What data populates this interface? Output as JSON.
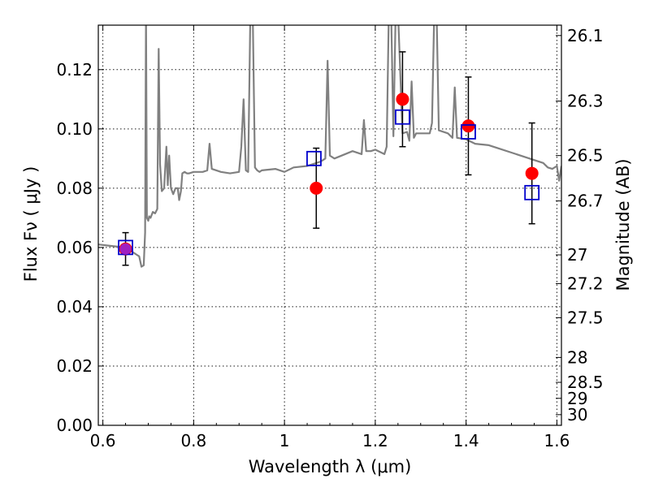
{
  "chart_data": {
    "type": "scatter",
    "xlabel": "Wavelength  λ (μm)",
    "ylabel": "Flux  Fν ( μJy )",
    "ylabel_right": "Magnitude (AB)",
    "xlim": [
      0.59,
      1.61
    ],
    "ylim": [
      0.0,
      0.135
    ],
    "grid": true,
    "x_ticks": [
      0.6,
      0.8,
      1.0,
      1.2,
      1.4,
      1.6
    ],
    "x_tick_labels": [
      "0.6",
      "0.8",
      "1",
      "1.2",
      "1.4",
      "1.6"
    ],
    "y_ticks": [
      0.0,
      0.02,
      0.04,
      0.06,
      0.08,
      0.1,
      0.12
    ],
    "y_tick_labels": [
      "0.00",
      "0.02",
      "0.04",
      "0.06",
      "0.08",
      "0.10",
      "0.12"
    ],
    "right_axis_ticks": [
      {
        "label": "26.1",
        "flux": 0.1315
      },
      {
        "label": "26.3",
        "flux": 0.1094
      },
      {
        "label": "26.5",
        "flux": 0.091
      },
      {
        "label": "26.7",
        "flux": 0.0757
      },
      {
        "label": "27",
        "flux": 0.0575
      },
      {
        "label": "27.2",
        "flux": 0.0478
      },
      {
        "label": "27.5",
        "flux": 0.0363
      },
      {
        "label": "28",
        "flux": 0.0229
      },
      {
        "label": "28.5",
        "flux": 0.0145
      },
      {
        "label": "29",
        "flux": 0.0091
      },
      {
        "label": "30",
        "flux": 0.0036
      }
    ],
    "colors": {
      "model": "#808080",
      "observed": "#ff0000",
      "model_band": "#0000cc",
      "errorbar": "#000000",
      "overlap": "#a020c0"
    },
    "model_spectrum": {
      "name": "",
      "x": [
        0.59,
        0.62,
        0.65,
        0.66,
        0.67,
        0.675,
        0.68,
        0.685,
        0.69,
        0.693,
        0.695,
        0.697,
        0.7,
        0.702,
        0.705,
        0.71,
        0.715,
        0.72,
        0.723,
        0.726,
        0.73,
        0.735,
        0.74,
        0.743,
        0.746,
        0.75,
        0.755,
        0.76,
        0.765,
        0.768,
        0.772,
        0.775,
        0.78,
        0.785,
        0.79,
        0.8,
        0.82,
        0.83,
        0.835,
        0.84,
        0.86,
        0.88,
        0.9,
        0.905,
        0.91,
        0.915,
        0.92,
        0.925,
        0.93,
        0.935,
        0.94,
        0.945,
        0.95,
        0.98,
        1.0,
        1.02,
        1.05,
        1.08,
        1.09,
        1.095,
        1.1,
        1.11,
        1.15,
        1.17,
        1.175,
        1.18,
        1.19,
        1.2,
        1.22,
        1.225,
        1.23,
        1.235,
        1.24,
        1.245,
        1.25,
        1.26,
        1.27,
        1.275,
        1.28,
        1.285,
        1.29,
        1.3,
        1.32,
        1.325,
        1.33,
        1.335,
        1.34,
        1.36,
        1.37,
        1.375,
        1.38,
        1.4,
        1.42,
        1.45,
        1.47,
        1.5,
        1.52,
        1.55,
        1.57,
        1.58,
        1.59,
        1.6,
        1.605,
        1.61
      ],
      "y": [
        0.061,
        0.0605,
        0.06,
        0.059,
        0.058,
        0.0575,
        0.057,
        0.0535,
        0.054,
        0.065,
        0.14,
        0.07,
        0.069,
        0.0705,
        0.07,
        0.072,
        0.0715,
        0.073,
        0.127,
        0.088,
        0.079,
        0.08,
        0.094,
        0.081,
        0.091,
        0.08,
        0.078,
        0.08,
        0.08,
        0.076,
        0.079,
        0.085,
        0.0855,
        0.085,
        0.085,
        0.0855,
        0.0855,
        0.086,
        0.095,
        0.0865,
        0.0855,
        0.085,
        0.0855,
        0.094,
        0.11,
        0.086,
        0.0855,
        0.14,
        0.14,
        0.087,
        0.086,
        0.0855,
        0.086,
        0.0865,
        0.0855,
        0.087,
        0.0875,
        0.089,
        0.09,
        0.123,
        0.091,
        0.09,
        0.0925,
        0.0915,
        0.103,
        0.0925,
        0.0925,
        0.093,
        0.0915,
        0.094,
        0.14,
        0.14,
        0.0975,
        0.14,
        0.14,
        0.0985,
        0.099,
        0.096,
        0.116,
        0.097,
        0.0985,
        0.0985,
        0.0985,
        0.102,
        0.14,
        0.14,
        0.0995,
        0.0985,
        0.097,
        0.114,
        0.097,
        0.0965,
        0.095,
        0.0945,
        0.0935,
        0.092,
        0.091,
        0.0895,
        0.0885,
        0.087,
        0.0865,
        0.0875,
        0.0825,
        0.0875
      ]
    },
    "observed_points": {
      "x": [
        0.65,
        1.07,
        1.26,
        1.405,
        1.545
      ],
      "y": [
        0.0595,
        0.08,
        0.11,
        0.101,
        0.085
      ],
      "yerr_low": [
        0.0055,
        0.0135,
        0.016,
        0.0165,
        0.017
      ],
      "yerr_high": [
        0.0055,
        0.0135,
        0.016,
        0.0165,
        0.017
      ]
    },
    "model_band_fluxes": {
      "x": [
        0.65,
        1.065,
        1.26,
        1.405,
        1.545
      ],
      "y": [
        0.06,
        0.09,
        0.104,
        0.099,
        0.0785
      ]
    }
  }
}
